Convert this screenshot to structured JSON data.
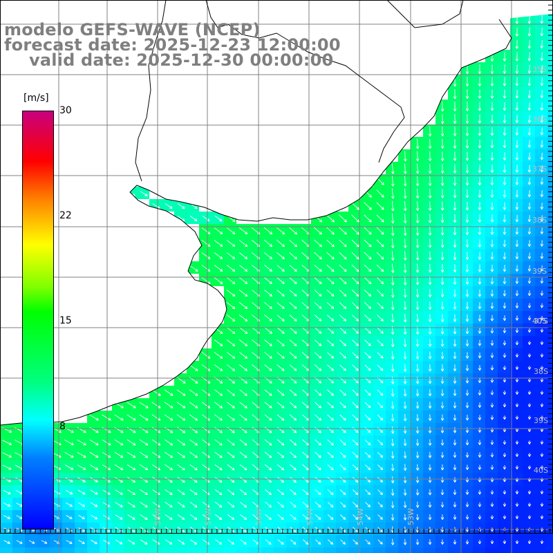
{
  "title": {
    "line1": "modelo GEFS-WAVE (NCEP)",
    "line2": "forecast date: 2025-12-23 12:00:00",
    "line3": "valid date: 2025-12-30 00:00:00"
  },
  "colorbar": {
    "unit": "[m/s]",
    "ticks": [
      "30",
      "22",
      "15",
      "8"
    ],
    "tick_values": [
      30,
      22,
      15,
      8
    ],
    "min": 0,
    "max": 30,
    "colors": [
      "#0000ff",
      "#0080ff",
      "#00ffff",
      "#00ff80",
      "#00ff00",
      "#80ff00",
      "#ffff00",
      "#ff8000",
      "#ff0000",
      "#c8007f"
    ]
  },
  "map": {
    "lat_labels": [
      "35S",
      "36S",
      "37S",
      "38S",
      "39S",
      "40S"
    ],
    "lon_labels": [
      "58W",
      "57W",
      "56W",
      "55W",
      "54W",
      "53W"
    ],
    "grid_color": "#808080",
    "arrow_color": "#ffffff",
    "coast_color": "#000000",
    "land_color": "#ffffff"
  }
}
